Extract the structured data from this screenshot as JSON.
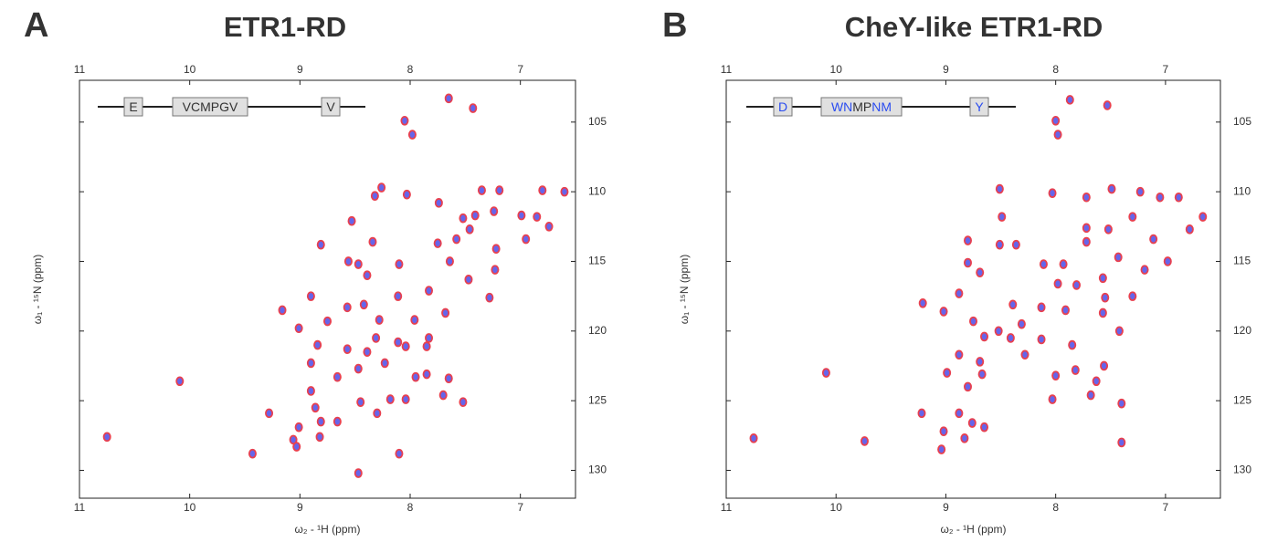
{
  "chart_data": [
    {
      "type": "scatter",
      "panel_label": "A",
      "title": "ETR1-RD",
      "x_label": "ω₂ - ¹H (ppm)",
      "y_label": "ω₁ - ¹⁵N (ppm)",
      "xlim": [
        6.5,
        11
      ],
      "ylim": [
        102,
        132
      ],
      "x_reversed": true,
      "y_reversed": true,
      "xticks": [
        11,
        10,
        9,
        8,
        7
      ],
      "yticks": [
        105,
        110,
        115,
        120,
        125,
        130
      ],
      "color": "#4a4ae8",
      "edge_color": "#e8404f",
      "sequence": [
        {
          "segments": [
            {
              "text": "E",
              "color": "#333333"
            }
          ]
        },
        {
          "segments": [
            {
              "text": "VCMPGV",
              "color": "#333333"
            }
          ]
        },
        {
          "segments": [
            {
              "text": "V",
              "color": "#333333"
            }
          ]
        }
      ],
      "x": [
        7.65,
        7.43,
        8.05,
        7.98,
        8.26,
        8.32,
        8.03,
        7.35,
        7.19,
        6.8,
        6.6,
        7.74,
        7.52,
        7.41,
        7.24,
        6.99,
        6.85,
        6.74,
        6.95,
        8.53,
        8.81,
        8.34,
        7.58,
        7.46,
        7.75,
        7.22,
        7.64,
        7.23,
        8.1,
        8.56,
        8.47,
        8.39,
        8.9,
        7.47,
        7.28,
        9.16,
        8.57,
        8.42,
        8.11,
        7.83,
        7.68,
        8.75,
        9.01,
        8.28,
        7.96,
        7.83,
        8.31,
        8.11,
        8.84,
        8.57,
        8.39,
        8.04,
        7.85,
        8.23,
        8.47,
        7.95,
        7.85,
        8.66,
        8.9,
        10.09,
        8.9,
        7.65,
        8.45,
        8.18,
        8.04,
        7.7,
        7.52,
        8.86,
        8.3,
        9.28,
        8.81,
        8.66,
        9.01,
        10.75,
        8.82,
        9.06,
        9.03,
        8.1,
        9.43,
        8.47
      ],
      "values": [
        103.3,
        104.0,
        104.9,
        105.9,
        109.7,
        110.3,
        110.2,
        109.9,
        109.9,
        109.9,
        110.0,
        110.8,
        111.9,
        111.7,
        111.4,
        111.7,
        111.8,
        112.5,
        113.4,
        112.1,
        113.8,
        113.6,
        113.4,
        112.7,
        113.7,
        114.1,
        115.0,
        115.6,
        115.2,
        115.0,
        115.2,
        116.0,
        117.5,
        116.3,
        117.6,
        118.5,
        118.3,
        118.1,
        117.5,
        117.1,
        118.7,
        119.3,
        119.8,
        119.2,
        119.2,
        120.5,
        120.5,
        120.8,
        121.0,
        121.3,
        121.5,
        121.1,
        121.1,
        122.3,
        122.7,
        123.3,
        123.1,
        123.3,
        122.3,
        123.6,
        124.3,
        123.4,
        125.1,
        124.9,
        124.9,
        124.6,
        125.1,
        125.5,
        125.9,
        125.9,
        126.5,
        126.5,
        126.9,
        127.6,
        127.6,
        127.8,
        128.3,
        128.8,
        128.8,
        130.2
      ]
    },
    {
      "type": "scatter",
      "panel_label": "B",
      "title": "CheY-like ETR1-RD",
      "x_label": "ω₂ - ¹H (ppm)",
      "y_label": "ω₁ - ¹⁵N (ppm)",
      "xlim": [
        6.5,
        11
      ],
      "ylim": [
        102,
        132
      ],
      "x_reversed": true,
      "y_reversed": true,
      "xticks": [
        11,
        10,
        9,
        8,
        7
      ],
      "yticks": [
        105,
        110,
        115,
        120,
        125,
        130
      ],
      "color": "#4a4ae8",
      "edge_color": "#e8404f",
      "sequence": [
        {
          "segments": [
            {
              "text": "D",
              "color": "#2a4cf0"
            }
          ]
        },
        {
          "segments": [
            {
              "text": "WN",
              "color": "#2a4cf0"
            },
            {
              "text": "MP",
              "color": "#333333"
            },
            {
              "text": "NM",
              "color": "#2a4cf0"
            }
          ]
        },
        {
          "segments": [
            {
              "text": "Y",
              "color": "#2a4cf0"
            }
          ]
        }
      ],
      "x": [
        7.87,
        7.53,
        8.0,
        7.98,
        8.51,
        8.03,
        7.72,
        7.49,
        7.23,
        7.05,
        6.88,
        6.66,
        8.49,
        7.3,
        7.52,
        7.72,
        6.78,
        8.8,
        8.51,
        8.36,
        7.72,
        7.11,
        7.43,
        8.8,
        8.11,
        7.93,
        8.69,
        6.98,
        7.19,
        7.57,
        7.98,
        7.81,
        8.88,
        7.3,
        7.55,
        8.39,
        8.13,
        9.21,
        7.91,
        9.02,
        7.57,
        8.31,
        8.75,
        8.52,
        7.42,
        8.65,
        8.41,
        8.13,
        7.85,
        8.28,
        8.88,
        8.69,
        7.82,
        7.56,
        8.67,
        10.09,
        8.99,
        8.0,
        7.63,
        8.8,
        8.03,
        7.68,
        7.4,
        9.22,
        8.88,
        8.76,
        8.65,
        9.02,
        8.83,
        10.75,
        9.74,
        7.4,
        9.04
      ],
      "values": [
        103.4,
        103.8,
        104.9,
        105.9,
        109.8,
        110.1,
        110.4,
        109.8,
        110.0,
        110.4,
        110.4,
        111.8,
        111.8,
        111.8,
        112.7,
        112.6,
        112.7,
        113.5,
        113.8,
        113.8,
        113.6,
        113.4,
        114.7,
        115.1,
        115.2,
        115.2,
        115.8,
        115.0,
        115.6,
        116.2,
        116.6,
        116.7,
        117.3,
        117.5,
        117.6,
        118.1,
        118.3,
        118.0,
        118.5,
        118.6,
        118.7,
        119.5,
        119.3,
        120.0,
        120.0,
        120.4,
        120.5,
        120.6,
        121.0,
        121.7,
        121.7,
        122.2,
        122.8,
        122.5,
        123.1,
        123.0,
        123.0,
        123.2,
        123.6,
        124.0,
        124.9,
        124.6,
        125.2,
        125.9,
        125.9,
        126.6,
        126.9,
        127.2,
        127.7,
        127.7,
        127.9,
        128.0,
        128.5
      ]
    }
  ]
}
